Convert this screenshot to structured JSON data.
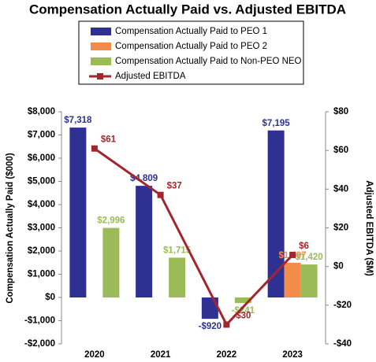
{
  "chart_data": {
    "type": "bar",
    "title": "Compensation Actually Paid vs. Adjusted EBITDA",
    "categories": [
      "2020",
      "2021",
      "2022",
      "2023"
    ],
    "series": [
      {
        "name": "Compensation Actually Paid to PEO 1",
        "color": "#2e3192",
        "values": [
          7318,
          4809,
          -920,
          7195
        ],
        "value_labels": [
          "$7,318",
          "$4,809",
          "-$920",
          "$7,195"
        ]
      },
      {
        "name": "Compensation Actually Paid to PEO 2",
        "color": "#f28c48",
        "values": [
          null,
          null,
          null,
          1497
        ],
        "value_labels": [
          null,
          null,
          null,
          "$1,497"
        ]
      },
      {
        "name": "Compensation Actually Paid to Non-PEO NEO",
        "color": "#9bbb59",
        "values": [
          2996,
          1715,
          -241,
          1420
        ],
        "value_labels": [
          "$2,996",
          "$1,715",
          "-$241",
          "$1,420"
        ]
      },
      {
        "name": "Adjusted EBITDA",
        "type": "line",
        "axis": "y2",
        "color": "#a3262e",
        "values": [
          61,
          37,
          -30,
          6
        ],
        "value_labels": [
          "$61",
          "$37",
          "-$30",
          "$6"
        ]
      }
    ],
    "ylabel": "Compensation Actually Paid ($000)",
    "y2label": "Adjusted EBITDA ($M)",
    "ylim": [
      -2000,
      8000
    ],
    "yticks": [
      {
        "value": -2000,
        "label": "-$2,000"
      },
      {
        "value": -1000,
        "label": "-$1,000"
      },
      {
        "value": 0,
        "label": "$0"
      },
      {
        "value": 1000,
        "label": "$1,000"
      },
      {
        "value": 2000,
        "label": "$2,000"
      },
      {
        "value": 3000,
        "label": "$3,000"
      },
      {
        "value": 4000,
        "label": "$4,000"
      },
      {
        "value": 5000,
        "label": "$5,000"
      },
      {
        "value": 6000,
        "label": "$6,000"
      },
      {
        "value": 7000,
        "label": "$7,000"
      },
      {
        "value": 8000,
        "label": "$8,000"
      }
    ],
    "y2lim": [
      -40,
      80
    ],
    "y2ticks": [
      {
        "value": -40,
        "label": "-$40"
      },
      {
        "value": -20,
        "label": "-$20"
      },
      {
        "value": 0,
        "label": "$0"
      },
      {
        "value": 20,
        "label": "$20"
      },
      {
        "value": 40,
        "label": "$40"
      },
      {
        "value": 60,
        "label": "$60"
      },
      {
        "value": 80,
        "label": "$80"
      }
    ],
    "legend": "top",
    "grid": false
  }
}
